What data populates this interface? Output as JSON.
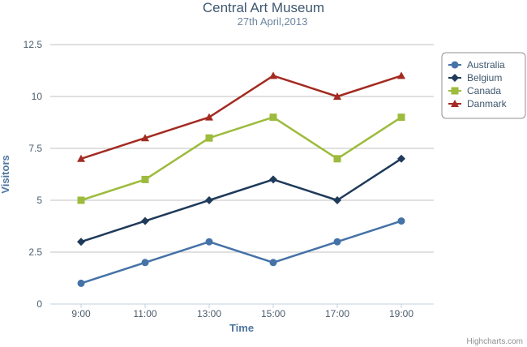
{
  "chart_data": {
    "type": "line",
    "title": "Central Art Museum",
    "subtitle": "27th April,2013",
    "xlabel": "Time",
    "ylabel": "Visitors",
    "categories": [
      "9:00",
      "11:00",
      "13:00",
      "15:00",
      "17:00",
      "19:00"
    ],
    "ylim": [
      0,
      12.5
    ],
    "yticks": [
      "0",
      "2.5",
      "5",
      "7.5",
      "10",
      "12.5"
    ],
    "ytick_values": [
      0,
      2.5,
      5,
      7.5,
      10,
      12.5
    ],
    "grid": true,
    "legend_position": "top-right",
    "series": [
      {
        "name": "Australia",
        "values": [
          1,
          2,
          3,
          2,
          3,
          4
        ],
        "color": "#4572a7",
        "marker": "circle"
      },
      {
        "name": "Belgium",
        "values": [
          3,
          4,
          5,
          6,
          5,
          7
        ],
        "color": "#1f3a5a",
        "marker": "diamond"
      },
      {
        "name": "Canada",
        "values": [
          5,
          6,
          8,
          9,
          7,
          9
        ],
        "color": "#9dbb3c",
        "marker": "square"
      },
      {
        "name": "Danmark",
        "values": [
          7,
          8,
          9,
          11,
          10,
          11
        ],
        "color": "#a32b22",
        "marker": "triangle"
      }
    ]
  },
  "credit": "Highcharts.com"
}
